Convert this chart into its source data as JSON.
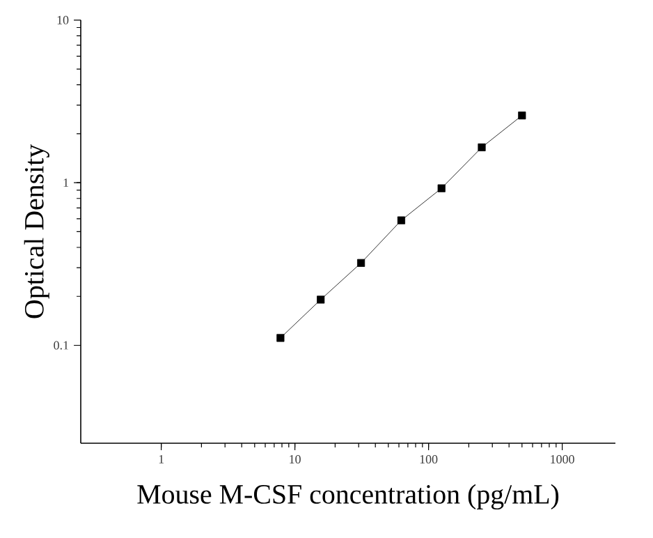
{
  "chart_data": {
    "type": "line",
    "xlabel": "Mouse M-CSF concentration (pg/mL)",
    "ylabel": "Optical Density",
    "x": [
      7.8,
      15.6,
      31.25,
      62.5,
      125,
      250,
      500
    ],
    "series": [
      {
        "color": "#000000",
        "values": [
          0.111,
          0.191,
          0.321,
          0.587,
          0.924,
          1.65,
          2.59
        ]
      }
    ],
    "log": "xy",
    "xlim": [
      0.25,
      2500
    ],
    "ylim": [
      0.025,
      10
    ],
    "xticks": [
      1,
      10,
      100,
      1000
    ],
    "yticks": [
      0.1,
      1,
      10
    ],
    "marker": "square",
    "line_style": "solid"
  }
}
